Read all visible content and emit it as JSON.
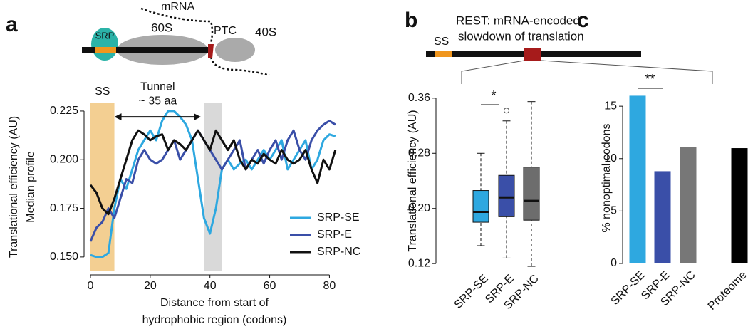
{
  "panel_labels": [
    "a",
    "b",
    "c"
  ],
  "diagram_a": {
    "srp": "SRP",
    "large": "60S",
    "mrna": "mRNA",
    "ptc": "PTC",
    "small": "40S"
  },
  "diagram_bc": {
    "title": [
      "REST: mRNA-encoded",
      "slowdown of translation"
    ],
    "ss": "SS"
  },
  "chart_data": [
    {
      "type": "line",
      "xlabel": [
        "Distance from start of",
        "hydrophobic region (codons)"
      ],
      "ylabel": [
        "Translational efficiency (AU)",
        "Median profile"
      ],
      "x": [
        0,
        2,
        4,
        6,
        8,
        10,
        12,
        14,
        16,
        18,
        20,
        22,
        24,
        26,
        28,
        30,
        32,
        34,
        36,
        38,
        40,
        42,
        44,
        46,
        48,
        50,
        52,
        54,
        56,
        58,
        60,
        62,
        64,
        66,
        68,
        70,
        72,
        74,
        76,
        78,
        80,
        82
      ],
      "series": [
        {
          "name": "SRP-SE",
          "color": "#2ea8e0",
          "values": [
            0.151,
            0.15,
            0.15,
            0.152,
            0.175,
            0.19,
            0.185,
            0.195,
            0.205,
            0.21,
            0.215,
            0.21,
            0.22,
            0.225,
            0.225,
            0.222,
            0.218,
            0.21,
            0.19,
            0.17,
            0.162,
            0.175,
            0.195,
            0.2,
            0.195,
            0.198,
            0.2,
            0.195,
            0.2,
            0.205,
            0.2,
            0.205,
            0.21,
            0.195,
            0.2,
            0.205,
            0.21,
            0.195,
            0.2,
            0.21,
            0.213,
            0.212
          ]
        },
        {
          "name": "SRP-E",
          "color": "#3a4fa8",
          "values": [
            0.158,
            0.165,
            0.168,
            0.175,
            0.17,
            0.18,
            0.19,
            0.188,
            0.2,
            0.205,
            0.2,
            0.198,
            0.2,
            0.205,
            0.21,
            0.2,
            0.205,
            0.21,
            0.215,
            0.21,
            0.205,
            0.2,
            0.195,
            0.2,
            0.205,
            0.21,
            0.195,
            0.2,
            0.205,
            0.198,
            0.205,
            0.21,
            0.2,
            0.21,
            0.215,
            0.205,
            0.2,
            0.21,
            0.215,
            0.218,
            0.22,
            0.218
          ]
        },
        {
          "name": "SRP-NC",
          "color": "#111111",
          "values": [
            0.187,
            0.183,
            0.175,
            0.172,
            0.18,
            0.19,
            0.2,
            0.21,
            0.215,
            0.213,
            0.21,
            0.212,
            0.213,
            0.205,
            0.21,
            0.208,
            0.205,
            0.21,
            0.215,
            0.21,
            0.205,
            0.215,
            0.21,
            0.205,
            0.21,
            0.2,
            0.195,
            0.2,
            0.198,
            0.203,
            0.2,
            0.198,
            0.205,
            0.2,
            0.198,
            0.2,
            0.205,
            0.195,
            0.188,
            0.2,
            0.195,
            0.205
          ]
        }
      ],
      "xlim": [
        0,
        83
      ],
      "ylim": [
        0.143,
        0.229
      ],
      "xticks": [
        0,
        20,
        40,
        60,
        80
      ],
      "yticks": [
        {
          "value": 0.15,
          "label": "0.150"
        },
        0.175,
        {
          "value": 0.2,
          "label": "0.200"
        },
        0.225
      ],
      "regions": [
        {
          "x": [
            0,
            8
          ],
          "label": "SS",
          "color": "#f3cf92"
        },
        {
          "x": [
            38,
            44
          ],
          "color": "#d9d9d9"
        }
      ],
      "annotation": {
        "text": [
          "Tunnel",
          "~ 35 aa"
        ],
        "x": [
          8,
          37
        ],
        "y": 0.222
      },
      "legend": "lower right"
    },
    {
      "type": "box",
      "ylabel": "Translational efficiency (AU)",
      "categories": [
        "SRP-SE",
        "SRP-E",
        "SRP-NC"
      ],
      "boxes": [
        {
          "whislo": 0.146,
          "q1": 0.18,
          "med": 0.195,
          "q3": 0.226,
          "whishi": 0.28,
          "fliers": [],
          "color": "#2ea8e0"
        },
        {
          "whislo": 0.128,
          "q1": 0.188,
          "med": 0.216,
          "q3": 0.248,
          "whishi": 0.327,
          "fliers": [
            0.342
          ],
          "color": "#3a4fa8"
        },
        {
          "whislo": 0.116,
          "q1": 0.183,
          "med": 0.211,
          "q3": 0.26,
          "whishi": 0.355,
          "fliers": [],
          "color": "#6d6d6d"
        }
      ],
      "ylim": [
        0.115,
        0.365
      ],
      "yticks": [
        0.12,
        {
          "value": 0.2,
          "label": "0.20"
        },
        0.28,
        0.36
      ],
      "significance": {
        "between": [
          0,
          1
        ],
        "label": "*"
      }
    },
    {
      "type": "bar",
      "ylabel": "% nonoptimal codons",
      "categories": [
        "SRP-SE",
        "SRP-E",
        "SRP-NC",
        "Proteome"
      ],
      "values": [
        16.0,
        8.8,
        11.1,
        11.0
      ],
      "colors": [
        "#2ea8e0",
        "#3a4fa8",
        "#777777",
        "#000000"
      ],
      "ylim": [
        0,
        16.3
      ],
      "yticks": [
        0,
        5,
        10,
        15
      ],
      "significance": {
        "between": [
          0,
          1
        ],
        "label": "**"
      }
    }
  ]
}
